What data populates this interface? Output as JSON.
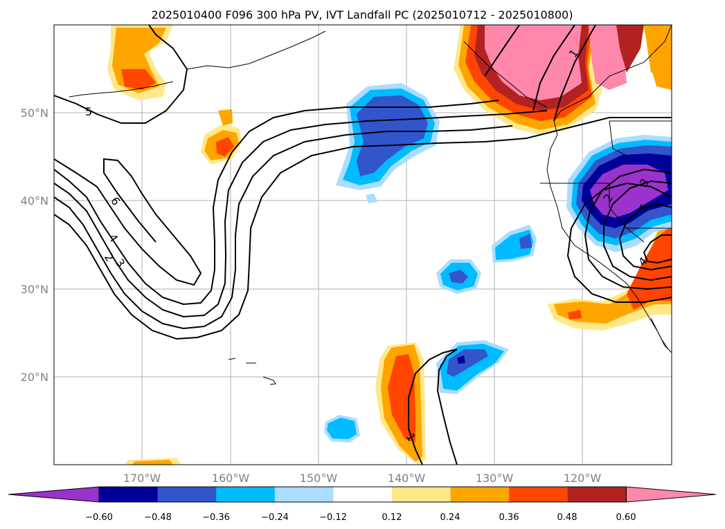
{
  "title": "2025010400 F096 300 hPa PV, IVT Landfall PC (2025010712 - 2025010800)",
  "axes": {
    "lat_labels": [
      "50°N",
      "40°N",
      "30°N",
      "20°N"
    ],
    "lon_labels": [
      "170°W",
      "160°W",
      "150°W",
      "140°W",
      "130°W",
      "120°W"
    ]
  },
  "colorbar": {
    "tick_labels": [
      "−0.60",
      "−0.48",
      "−0.36",
      "−0.24",
      "−0.12",
      "0.12",
      "0.24",
      "0.36",
      "0.48",
      "0.60"
    ],
    "colors": [
      "#9933cc",
      "#000099",
      "#3355cc",
      "#00bbff",
      "#aaddff",
      "#ffffff",
      "#ffe88a",
      "#ffa500",
      "#ff4500",
      "#b22222",
      "#ff88aa"
    ]
  },
  "contour_labels": [
    "5",
    "6",
    "4",
    "2",
    "3",
    "1",
    "1",
    "2",
    "3",
    "4",
    "5"
  ],
  "fill_colors": {
    "pos_low": "#ffe88a",
    "pos_mid": "#ffa500",
    "pos_high": "#ff4500",
    "pos_vhigh": "#b22222",
    "pos_max": "#ff88aa",
    "neg_low": "#aaddff",
    "neg_mid": "#00bbff",
    "neg_high": "#3355cc",
    "neg_vhigh": "#000099",
    "neg_max": "#9933cc"
  }
}
